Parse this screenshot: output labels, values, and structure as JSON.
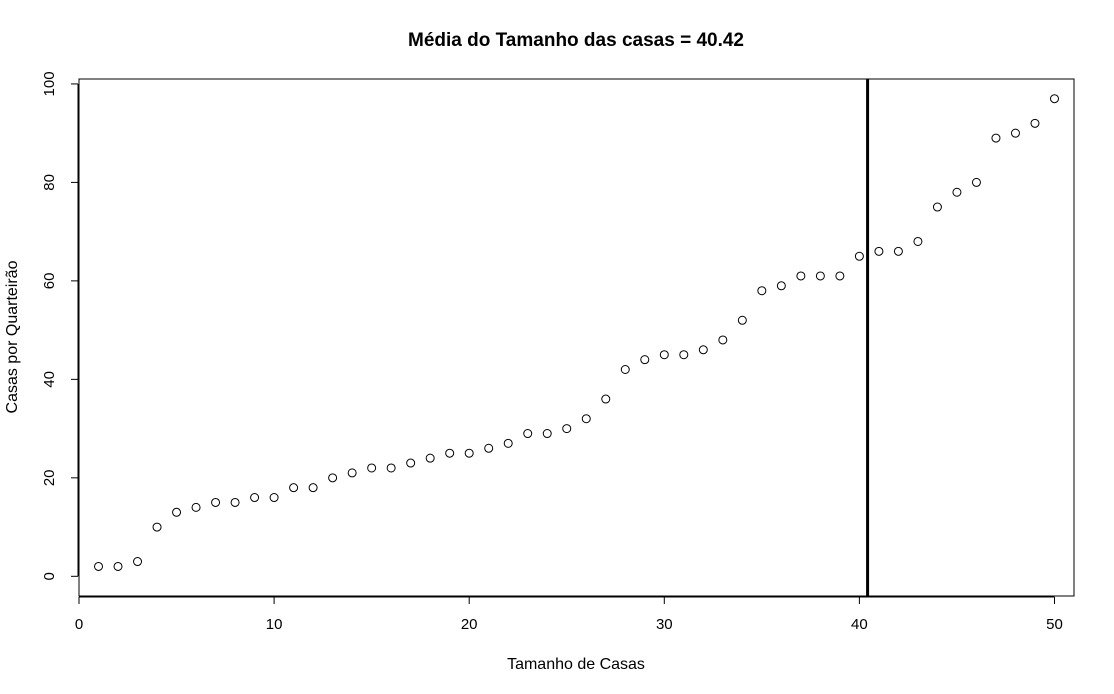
{
  "chart_data": {
    "type": "scatter",
    "title": "Média do Tamanho das casas = 40.42",
    "xlabel": "Tamanho de Casas",
    "ylabel": "Casas por Quarteirão",
    "xlim": [
      0,
      51
    ],
    "ylim": [
      -4,
      101
    ],
    "xticks": [
      0,
      10,
      20,
      30,
      40,
      50
    ],
    "yticks": [
      0,
      20,
      40,
      60,
      80,
      100
    ],
    "grid": false,
    "vline": 40.42,
    "x": [
      1,
      2,
      3,
      4,
      5,
      6,
      7,
      8,
      9,
      10,
      11,
      12,
      13,
      14,
      15,
      16,
      17,
      18,
      19,
      20,
      21,
      22,
      23,
      24,
      25,
      26,
      27,
      28,
      29,
      30,
      31,
      32,
      33,
      34,
      35,
      36,
      37,
      38,
      39,
      40,
      41,
      42,
      43,
      44,
      45,
      46,
      47,
      48,
      49,
      50
    ],
    "y": [
      2,
      2,
      3,
      10,
      13,
      14,
      15,
      15,
      16,
      16,
      18,
      18,
      20,
      21,
      22,
      22,
      23,
      24,
      25,
      25,
      26,
      27,
      29,
      29,
      30,
      32,
      36,
      42,
      44,
      45,
      45,
      46,
      48,
      52,
      58,
      59,
      61,
      61,
      61,
      65,
      66,
      66,
      68,
      75,
      78,
      80,
      89,
      90,
      92,
      97
    ]
  }
}
